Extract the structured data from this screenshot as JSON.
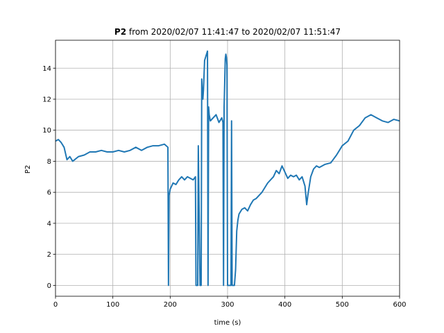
{
  "chart_data": {
    "type": "line",
    "title_bold": "P2",
    "title_rest": " from 2020/02/07 11:41:47 to 2020/02/07 11:51:47",
    "xlabel": "time (s)",
    "ylabel": "P2",
    "xlim": [
      0,
      600
    ],
    "ylim": [
      -0.7,
      15.8
    ],
    "xticks": [
      0,
      100,
      200,
      300,
      400,
      500,
      600
    ],
    "yticks": [
      0,
      2,
      4,
      6,
      8,
      10,
      12,
      14
    ],
    "grid": true,
    "legend": "none",
    "color": "#1f77b4",
    "series": [
      {
        "x": [
          0,
          5,
          10,
          15,
          20,
          25,
          30,
          40,
          50,
          60,
          70,
          80,
          90,
          100,
          110,
          120,
          130,
          140,
          150,
          160,
          170,
          180,
          190,
          196,
          197,
          198,
          199,
          200,
          205,
          210,
          215,
          220,
          225,
          230,
          235,
          240,
          244,
          245,
          246,
          247,
          248,
          249,
          252,
          254,
          255,
          256,
          257,
          258,
          260,
          265,
          266,
          267,
          268,
          270,
          275,
          280,
          285,
          290,
          292,
          293,
          294,
          295,
          296,
          297,
          298,
          299,
          300,
          302,
          304,
          305,
          306,
          307,
          308,
          309,
          310,
          312,
          314,
          316,
          318,
          320,
          325,
          330,
          335,
          340,
          345,
          350,
          360,
          370,
          380,
          385,
          390,
          395,
          400,
          405,
          410,
          415,
          420,
          425,
          430,
          435,
          438,
          440,
          445,
          450,
          455,
          460,
          470,
          480,
          490,
          500,
          510,
          520,
          530,
          540,
          550,
          560,
          570,
          580,
          590,
          600
        ],
        "y": [
          9.3,
          9.4,
          9.2,
          8.9,
          8.1,
          8.3,
          8.0,
          8.3,
          8.4,
          8.6,
          8.6,
          8.7,
          8.6,
          8.6,
          8.7,
          8.6,
          8.7,
          8.9,
          8.7,
          8.9,
          9.0,
          9.0,
          9.1,
          8.9,
          0.0,
          5.8,
          6.0,
          6.2,
          6.6,
          6.5,
          6.8,
          7.0,
          6.8,
          7.0,
          6.9,
          6.8,
          7.0,
          0.0,
          0.0,
          0.0,
          0.0,
          9.0,
          0.0,
          0.0,
          13.3,
          12.5,
          12.0,
          12.6,
          14.5,
          15.1,
          0.0,
          11.5,
          11.0,
          10.6,
          10.8,
          11.0,
          10.5,
          10.8,
          10.5,
          0.0,
          11.5,
          13.0,
          14.6,
          14.9,
          14.7,
          14.2,
          0.0,
          0.0,
          0.0,
          0.0,
          0.0,
          10.6,
          0.0,
          0.0,
          0.0,
          0.0,
          1.0,
          3.5,
          4.2,
          4.6,
          4.9,
          5.0,
          4.8,
          5.2,
          5.5,
          5.6,
          6.0,
          6.6,
          7.0,
          7.4,
          7.2,
          7.7,
          7.3,
          6.9,
          7.1,
          7.0,
          7.1,
          6.8,
          7.0,
          6.4,
          5.2,
          5.8,
          7.0,
          7.5,
          7.7,
          7.6,
          7.8,
          7.9,
          8.4,
          9.0,
          9.3,
          10.0,
          10.3,
          10.8,
          11.0,
          10.8,
          10.6,
          10.5,
          10.7,
          10.6
        ]
      }
    ]
  }
}
